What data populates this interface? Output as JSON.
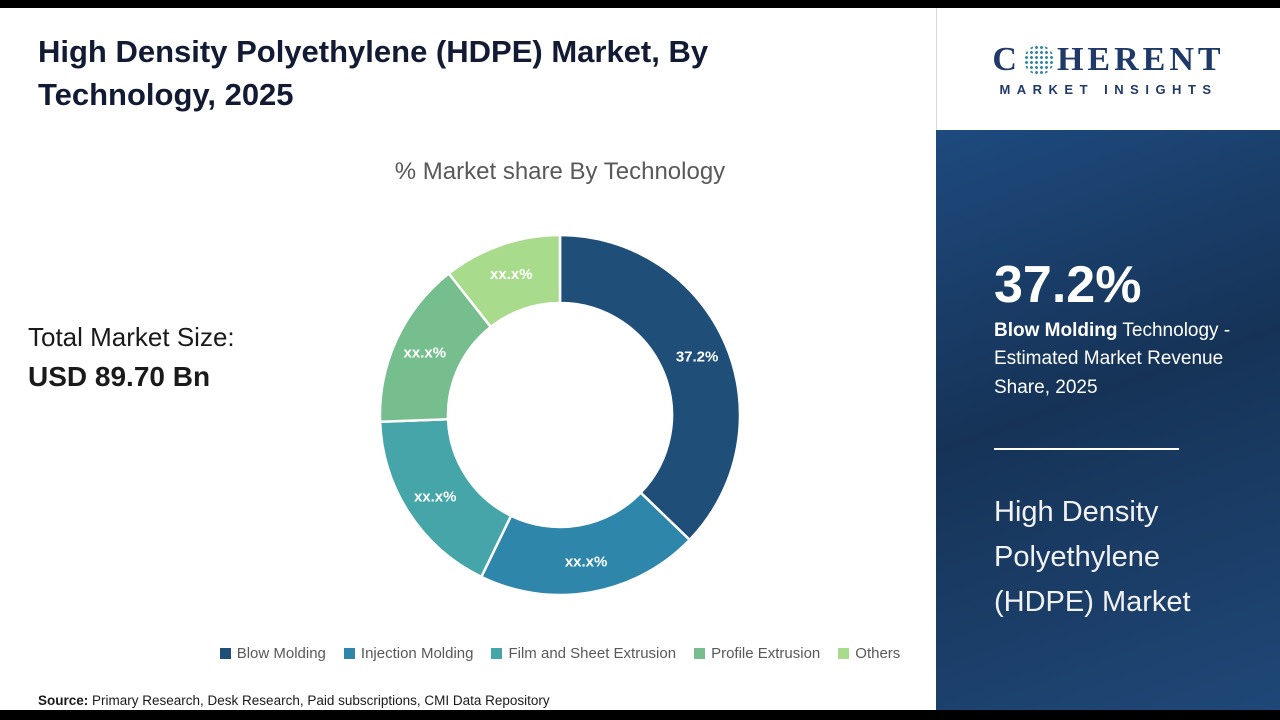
{
  "header": {
    "title": "High Density Polyethylene (HDPE) Market, By Technology, 2025"
  },
  "logo": {
    "prefix": "C",
    "suffix": "HERENT",
    "subtitle": "MARKET INSIGHTS"
  },
  "stat": {
    "label": "Total Market Size:",
    "value": "USD 89.70 Bn"
  },
  "sidebar": {
    "stat_value": "37.2%",
    "stat_label_bold": "Blow Molding",
    "stat_label_rest": " Technology - Estimated Market Revenue Share, 2025",
    "market_name": "High Density Polyethylene (HDPE) Market"
  },
  "source": {
    "label": "Source:",
    "text": " Primary Research, Desk Research, Paid subscriptions, CMI Data Repository"
  },
  "theme": {
    "brand_navy": "#1F3A68",
    "sidebar_blue": "#163357",
    "legend_text": "#595959"
  },
  "chart_data": {
    "type": "pie",
    "donut": true,
    "title": "% Market share By Technology",
    "categories": [
      "Blow Molding",
      "Injection Molding",
      "Film and Sheet Extrusion",
      "Profile Extrusion",
      "Others"
    ],
    "values": [
      37.2,
      20.0,
      17.2,
      15.0,
      10.6
    ],
    "slice_labels": [
      "37.2%",
      "xx.x%",
      "xx.x%",
      "xx.x%",
      "xx.x%"
    ],
    "colors": [
      "#1F4E79",
      "#2E86AB",
      "#45A5A8",
      "#76BE8D",
      "#A8DB8C"
    ],
    "start_angle_deg": -90,
    "direction": "clockwise",
    "legend_position": "bottom"
  }
}
